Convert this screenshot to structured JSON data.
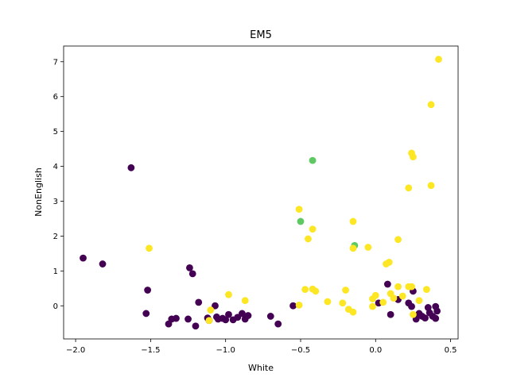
{
  "chart_data": {
    "type": "scatter",
    "title": "EM5",
    "xlabel": "White",
    "ylabel": "NonEnglish",
    "xlim": [
      -2.08,
      0.55
    ],
    "ylim": [
      -0.95,
      7.45
    ],
    "xticks": [
      -2.0,
      -1.5,
      -1.0,
      -0.5,
      0.0,
      0.5
    ],
    "xtick_labels": [
      "−2.0",
      "−1.5",
      "−1.0",
      "−0.5",
      "0.0",
      "0.5"
    ],
    "yticks": [
      0,
      1,
      2,
      3,
      4,
      5,
      6,
      7
    ],
    "ytick_labels": [
      "0",
      "1",
      "2",
      "3",
      "4",
      "5",
      "6",
      "7"
    ],
    "grid": false,
    "colors": {
      "cluster_0": "#440154",
      "cluster_1": "#5ec962",
      "cluster_2": "#fde725"
    },
    "points": [
      {
        "x": -1.95,
        "y": 1.37,
        "c": "cluster_0"
      },
      {
        "x": -1.82,
        "y": 1.2,
        "c": "cluster_0"
      },
      {
        "x": -1.63,
        "y": 3.96,
        "c": "cluster_0"
      },
      {
        "x": -1.52,
        "y": 0.45,
        "c": "cluster_0"
      },
      {
        "x": -1.53,
        "y": -0.22,
        "c": "cluster_0"
      },
      {
        "x": -1.38,
        "y": -0.52,
        "c": "cluster_0"
      },
      {
        "x": -1.36,
        "y": -0.38,
        "c": "cluster_0"
      },
      {
        "x": -1.33,
        "y": -0.36,
        "c": "cluster_0"
      },
      {
        "x": -1.25,
        "y": -0.38,
        "c": "cluster_0"
      },
      {
        "x": -1.24,
        "y": 1.09,
        "c": "cluster_0"
      },
      {
        "x": -1.22,
        "y": 0.92,
        "c": "cluster_0"
      },
      {
        "x": -1.2,
        "y": -0.58,
        "c": "cluster_0"
      },
      {
        "x": -1.18,
        "y": 0.1,
        "c": "cluster_0"
      },
      {
        "x": -1.12,
        "y": -0.35,
        "c": "cluster_0"
      },
      {
        "x": -1.11,
        "y": -0.42,
        "c": "cluster_0"
      },
      {
        "x": -1.07,
        "y": 0.0,
        "c": "cluster_0"
      },
      {
        "x": -1.06,
        "y": -0.32,
        "c": "cluster_0"
      },
      {
        "x": -1.05,
        "y": -0.38,
        "c": "cluster_0"
      },
      {
        "x": -1.02,
        "y": -0.36,
        "c": "cluster_0"
      },
      {
        "x": -1.0,
        "y": -0.4,
        "c": "cluster_0"
      },
      {
        "x": -0.98,
        "y": -0.25,
        "c": "cluster_0"
      },
      {
        "x": -0.95,
        "y": -0.4,
        "c": "cluster_0"
      },
      {
        "x": -0.92,
        "y": -0.33,
        "c": "cluster_0"
      },
      {
        "x": -0.89,
        "y": -0.22,
        "c": "cluster_0"
      },
      {
        "x": -0.87,
        "y": -0.38,
        "c": "cluster_0"
      },
      {
        "x": -0.85,
        "y": -0.28,
        "c": "cluster_0"
      },
      {
        "x": -0.7,
        "y": -0.3,
        "c": "cluster_0"
      },
      {
        "x": -0.65,
        "y": -0.52,
        "c": "cluster_0"
      },
      {
        "x": -0.55,
        "y": 0.0,
        "c": "cluster_0"
      },
      {
        "x": 0.02,
        "y": 0.08,
        "c": "cluster_0"
      },
      {
        "x": 0.08,
        "y": 0.62,
        "c": "cluster_0"
      },
      {
        "x": 0.1,
        "y": -0.25,
        "c": "cluster_0"
      },
      {
        "x": 0.15,
        "y": 0.18,
        "c": "cluster_0"
      },
      {
        "x": 0.22,
        "y": 0.08,
        "c": "cluster_0"
      },
      {
        "x": 0.24,
        "y": -0.02,
        "c": "cluster_0"
      },
      {
        "x": 0.25,
        "y": 0.42,
        "c": "cluster_0"
      },
      {
        "x": 0.27,
        "y": -0.38,
        "c": "cluster_0"
      },
      {
        "x": 0.29,
        "y": -0.22,
        "c": "cluster_0"
      },
      {
        "x": 0.31,
        "y": -0.3,
        "c": "cluster_0"
      },
      {
        "x": 0.33,
        "y": -0.35,
        "c": "cluster_0"
      },
      {
        "x": 0.35,
        "y": -0.05,
        "c": "cluster_0"
      },
      {
        "x": 0.36,
        "y": -0.2,
        "c": "cluster_0"
      },
      {
        "x": 0.38,
        "y": -0.3,
        "c": "cluster_0"
      },
      {
        "x": 0.4,
        "y": -0.36,
        "c": "cluster_0"
      },
      {
        "x": 0.4,
        "y": -0.02,
        "c": "cluster_0"
      },
      {
        "x": 0.41,
        "y": -0.15,
        "c": "cluster_0"
      },
      {
        "x": -0.42,
        "y": 4.17,
        "c": "cluster_1"
      },
      {
        "x": -0.5,
        "y": 2.42,
        "c": "cluster_1"
      },
      {
        "x": -0.14,
        "y": 1.73,
        "c": "cluster_1"
      },
      {
        "x": 0.42,
        "y": 7.07,
        "c": "cluster_2"
      },
      {
        "x": 0.37,
        "y": 5.77,
        "c": "cluster_2"
      },
      {
        "x": 0.24,
        "y": 4.38,
        "c": "cluster_2"
      },
      {
        "x": 0.25,
        "y": 4.27,
        "c": "cluster_2"
      },
      {
        "x": 0.37,
        "y": 3.45,
        "c": "cluster_2"
      },
      {
        "x": 0.22,
        "y": 3.38,
        "c": "cluster_2"
      },
      {
        "x": -0.51,
        "y": 2.77,
        "c": "cluster_2"
      },
      {
        "x": -0.15,
        "y": 2.42,
        "c": "cluster_2"
      },
      {
        "x": -0.42,
        "y": 2.2,
        "c": "cluster_2"
      },
      {
        "x": -0.45,
        "y": 1.92,
        "c": "cluster_2"
      },
      {
        "x": 0.15,
        "y": 1.9,
        "c": "cluster_2"
      },
      {
        "x": -1.51,
        "y": 1.65,
        "c": "cluster_2"
      },
      {
        "x": -0.15,
        "y": 1.65,
        "c": "cluster_2"
      },
      {
        "x": -0.05,
        "y": 1.68,
        "c": "cluster_2"
      },
      {
        "x": 0.07,
        "y": 1.2,
        "c": "cluster_2"
      },
      {
        "x": 0.09,
        "y": 1.25,
        "c": "cluster_2"
      },
      {
        "x": -0.47,
        "y": 0.47,
        "c": "cluster_2"
      },
      {
        "x": -0.42,
        "y": 0.48,
        "c": "cluster_2"
      },
      {
        "x": -0.4,
        "y": 0.42,
        "c": "cluster_2"
      },
      {
        "x": -0.98,
        "y": 0.32,
        "c": "cluster_2"
      },
      {
        "x": -0.87,
        "y": 0.15,
        "c": "cluster_2"
      },
      {
        "x": -0.32,
        "y": 0.12,
        "c": "cluster_2"
      },
      {
        "x": -0.22,
        "y": 0.08,
        "c": "cluster_2"
      },
      {
        "x": -0.2,
        "y": 0.45,
        "c": "cluster_2"
      },
      {
        "x": -0.18,
        "y": -0.1,
        "c": "cluster_2"
      },
      {
        "x": -0.15,
        "y": -0.18,
        "c": "cluster_2"
      },
      {
        "x": -0.02,
        "y": 0.2,
        "c": "cluster_2"
      },
      {
        "x": -0.02,
        "y": -0.02,
        "c": "cluster_2"
      },
      {
        "x": 0.0,
        "y": 0.3,
        "c": "cluster_2"
      },
      {
        "x": 0.05,
        "y": 0.1,
        "c": "cluster_2"
      },
      {
        "x": 0.1,
        "y": 0.35,
        "c": "cluster_2"
      },
      {
        "x": 0.12,
        "y": 0.22,
        "c": "cluster_2"
      },
      {
        "x": 0.15,
        "y": 0.55,
        "c": "cluster_2"
      },
      {
        "x": 0.18,
        "y": 0.28,
        "c": "cluster_2"
      },
      {
        "x": 0.22,
        "y": 0.55,
        "c": "cluster_2"
      },
      {
        "x": 0.24,
        "y": 0.55,
        "c": "cluster_2"
      },
      {
        "x": 0.25,
        "y": -0.25,
        "c": "cluster_2"
      },
      {
        "x": 0.29,
        "y": 0.15,
        "c": "cluster_2"
      },
      {
        "x": 0.34,
        "y": 0.47,
        "c": "cluster_2"
      },
      {
        "x": -1.11,
        "y": -0.42,
        "c": "cluster_2"
      },
      {
        "x": -1.1,
        "y": -0.12,
        "c": "cluster_2"
      },
      {
        "x": -0.51,
        "y": 0.02,
        "c": "cluster_2"
      }
    ]
  }
}
